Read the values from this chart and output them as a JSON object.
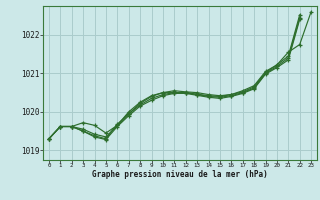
{
  "xlabel": "Graphe pression niveau de la mer (hPa)",
  "ylim": [
    1018.75,
    1022.75
  ],
  "xlim": [
    -0.5,
    23.5
  ],
  "yticks": [
    1019,
    1020,
    1021,
    1022
  ],
  "xticks": [
    0,
    1,
    2,
    3,
    4,
    5,
    6,
    7,
    8,
    9,
    10,
    11,
    12,
    13,
    14,
    15,
    16,
    17,
    18,
    19,
    20,
    21,
    22,
    23
  ],
  "bg_color": "#cce8e8",
  "grid_color": "#aacccc",
  "line_color": "#2d6e2d",
  "marker_color": "#2d6e2d",
  "series": [
    {
      "x": [
        0,
        1,
        2,
        3,
        4,
        5,
        6,
        7,
        8,
        9,
        10,
        11,
        12,
        13,
        14,
        15,
        16,
        17,
        18,
        19,
        20,
        21,
        22,
        23
      ],
      "y": [
        1019.3,
        1019.62,
        1019.62,
        1019.72,
        1019.65,
        1019.45,
        1019.65,
        1020.0,
        1020.25,
        1020.42,
        1020.5,
        1020.55,
        1020.52,
        1020.5,
        1020.45,
        1020.42,
        1020.45,
        1020.55,
        1020.68,
        1021.05,
        1021.22,
        1021.55,
        1021.75,
        1022.6
      ]
    },
    {
      "x": [
        0,
        1,
        2,
        3,
        4,
        5,
        6,
        7,
        8,
        9,
        10,
        11,
        12,
        13,
        14,
        15,
        16,
        17,
        18,
        19,
        20,
        21,
        22
      ],
      "y": [
        1019.3,
        1019.62,
        1019.62,
        1019.55,
        1019.42,
        1019.35,
        1019.65,
        1019.95,
        1020.22,
        1020.4,
        1020.5,
        1020.5,
        1020.5,
        1020.46,
        1020.42,
        1020.4,
        1020.45,
        1020.52,
        1020.65,
        1021.02,
        1021.22,
        1021.45,
        1022.52
      ]
    },
    {
      "x": [
        0,
        1,
        2,
        3,
        4,
        5,
        6,
        7,
        8,
        9,
        10,
        11,
        12,
        13,
        14,
        15,
        16,
        17,
        18,
        19,
        20,
        21,
        22
      ],
      "y": [
        1019.3,
        1019.62,
        1019.62,
        1019.5,
        1019.38,
        1019.3,
        1019.68,
        1019.95,
        1020.18,
        1020.35,
        1020.45,
        1020.5,
        1020.5,
        1020.45,
        1020.4,
        1020.38,
        1020.42,
        1020.5,
        1020.62,
        1021.0,
        1021.18,
        1021.4,
        1022.45
      ]
    },
    {
      "x": [
        0,
        1,
        2,
        3,
        4,
        5,
        6,
        7,
        8,
        9,
        10,
        11,
        12,
        13,
        14,
        15,
        16,
        17,
        18,
        19,
        20,
        21,
        22
      ],
      "y": [
        1019.3,
        1019.62,
        1019.62,
        1019.5,
        1019.35,
        1019.28,
        1019.62,
        1019.9,
        1020.15,
        1020.3,
        1020.42,
        1020.48,
        1020.48,
        1020.43,
        1020.38,
        1020.35,
        1020.4,
        1020.48,
        1020.6,
        1020.98,
        1021.15,
        1021.35,
        1022.4
      ]
    }
  ]
}
